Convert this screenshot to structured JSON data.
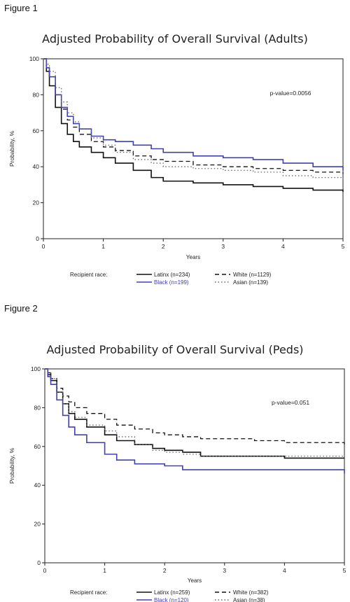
{
  "figures": [
    {
      "label": "Figure 1",
      "chart_data": {
        "type": "line",
        "title": "Adjusted Probability of Overall Survival (Adults)",
        "xlabel": "Years",
        "ylabel": "Probability, %",
        "xlim": [
          0,
          5
        ],
        "ylim": [
          0,
          100
        ],
        "xticks": [
          0,
          1,
          2,
          3,
          4,
          5
        ],
        "yticks": [
          0,
          20,
          40,
          60,
          80,
          100
        ],
        "grid": false,
        "legend_title": "Recipient race:",
        "legend_position": "bottom",
        "annotation": "p-value=0.0056",
        "series": [
          {
            "name": "Latinx (n=234)",
            "color": "#111111",
            "dash": "solid",
            "x": [
              0,
              0.05,
              0.1,
              0.2,
              0.3,
              0.4,
              0.5,
              0.6,
              0.8,
              1.0,
              1.2,
              1.5,
              1.8,
              2.0,
              2.5,
              3.0,
              3.5,
              4.0,
              4.5,
              5.0
            ],
            "y": [
              100,
              93,
              85,
              73,
              64,
              58,
              54,
              51,
              48,
              45,
              42,
              38,
              34,
              32,
              31,
              30,
              29,
              28,
              27,
              26
            ]
          },
          {
            "name": "White (n=1129)",
            "color": "#111111",
            "dash": "dashed",
            "x": [
              0,
              0.05,
              0.1,
              0.2,
              0.3,
              0.4,
              0.5,
              0.6,
              0.8,
              1.0,
              1.2,
              1.5,
              1.8,
              2.0,
              2.5,
              3.0,
              3.5,
              4.0,
              4.5,
              5.0
            ],
            "y": [
              100,
              95,
              90,
              80,
              72,
              66,
              62,
              58,
              54,
              51,
              49,
              46,
              44,
              43,
              41,
              40,
              39,
              38,
              37,
              36
            ]
          },
          {
            "name": "Black (n=199)",
            "color": "#4040b0",
            "dash": "solid",
            "x": [
              0,
              0.05,
              0.1,
              0.2,
              0.3,
              0.4,
              0.5,
              0.6,
              0.8,
              1.0,
              1.2,
              1.5,
              1.8,
              2.0,
              2.5,
              3.0,
              3.5,
              4.0,
              4.5,
              5.0
            ],
            "y": [
              100,
              95,
              90,
              80,
              73,
              68,
              64,
              61,
              57,
              55,
              54,
              52,
              50,
              48,
              46,
              45,
              44,
              42,
              40,
              38
            ]
          },
          {
            "name": "Asian (n=139)",
            "color": "#666666",
            "dash": "dotted",
            "x": [
              0,
              0.05,
              0.1,
              0.2,
              0.3,
              0.4,
              0.5,
              0.6,
              0.8,
              1.0,
              1.2,
              1.5,
              1.8,
              2.0,
              2.5,
              3.0,
              3.5,
              4.0,
              4.5,
              5.0
            ],
            "y": [
              100,
              97,
              93,
              84,
              76,
              70,
              65,
              61,
              56,
              52,
              48,
              44,
              42,
              40,
              39,
              38,
              37,
              35,
              34,
              33
            ]
          }
        ]
      }
    },
    {
      "label": "Figure 2",
      "chart_data": {
        "type": "line",
        "title": "Adjusted Probability of Overall Survival (Peds)",
        "xlabel": "Years",
        "ylabel": "Probability, %",
        "xlim": [
          0,
          5
        ],
        "ylim": [
          0,
          100
        ],
        "xticks": [
          0,
          1,
          2,
          3,
          4,
          5
        ],
        "yticks": [
          0,
          20,
          40,
          60,
          80,
          100
        ],
        "grid": false,
        "legend_title": "Recipient race:",
        "legend_position": "bottom",
        "annotation": "p-value=0.051",
        "series": [
          {
            "name": "Latinx (n=259)",
            "color": "#111111",
            "dash": "solid",
            "x": [
              0,
              0.05,
              0.1,
              0.2,
              0.3,
              0.4,
              0.5,
              0.7,
              1.0,
              1.2,
              1.5,
              1.8,
              2.0,
              2.3,
              2.6,
              3.0,
              3.5,
              4.0,
              4.5,
              5.0
            ],
            "y": [
              100,
              97,
              94,
              88,
              82,
              77,
              74,
              70,
              66,
              63,
              61,
              59,
              58,
              57,
              55,
              55,
              55,
              54,
              54,
              54
            ]
          },
          {
            "name": "White (n=382)",
            "color": "#111111",
            "dash": "dashed",
            "x": [
              0,
              0.05,
              0.1,
              0.2,
              0.3,
              0.4,
              0.5,
              0.7,
              1.0,
              1.2,
              1.5,
              1.8,
              2.0,
              2.3,
              2.6,
              3.0,
              3.5,
              4.0,
              4.5,
              5.0
            ],
            "y": [
              100,
              98,
              95,
              90,
              86,
              83,
              80,
              77,
              74,
              71,
              69,
              67,
              66,
              65,
              64,
              64,
              63,
              62,
              62,
              61
            ]
          },
          {
            "name": "Black (n=120)",
            "color": "#4040b0",
            "dash": "solid",
            "x": [
              0,
              0.05,
              0.1,
              0.2,
              0.3,
              0.4,
              0.5,
              0.7,
              1.0,
              1.2,
              1.5,
              1.8,
              2.0,
              2.3,
              2.6,
              3.0,
              3.5,
              4.0,
              4.5,
              5.0
            ],
            "y": [
              100,
              96,
              92,
              84,
              76,
              70,
              66,
              62,
              56,
              53,
              51,
              51,
              50,
              48,
              48,
              48,
              48,
              48,
              48,
              46
            ]
          },
          {
            "name": "Asian (n=38)",
            "color": "#666666",
            "dash": "dotted",
            "x": [
              0,
              0.05,
              0.1,
              0.2,
              0.3,
              0.4,
              0.5,
              0.7,
              1.0,
              1.2,
              1.5,
              1.8,
              2.0,
              2.3,
              2.6,
              3.0,
              3.5,
              4.0,
              4.5,
              5.0
            ],
            "y": [
              100,
              98,
              95,
              88,
              82,
              78,
              75,
              71,
              68,
              65,
              61,
              58,
              57,
              56,
              55,
              55,
              55,
              55,
              55,
              55
            ]
          }
        ]
      }
    }
  ]
}
